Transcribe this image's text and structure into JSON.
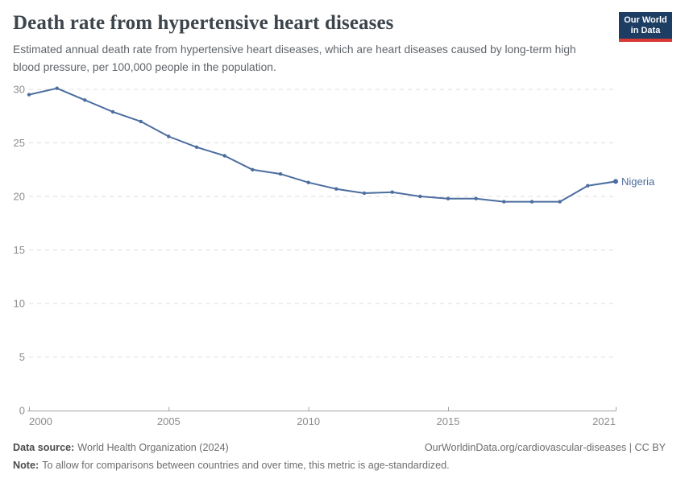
{
  "header": {
    "title": "Death rate from hypertensive heart diseases",
    "subtitle": "Estimated annual death rate from hypertensive heart diseases, which are heart diseases caused by long-term high blood pressure, per 100,000 people in the population.",
    "logo": {
      "line1": "Our World",
      "line2": "in Data"
    }
  },
  "chart_data": {
    "type": "line",
    "title": "Death rate from hypertensive heart diseases",
    "x": [
      2000,
      2001,
      2002,
      2003,
      2004,
      2005,
      2006,
      2007,
      2008,
      2009,
      2010,
      2011,
      2012,
      2013,
      2014,
      2015,
      2016,
      2017,
      2018,
      2019,
      2020,
      2021
    ],
    "series": [
      {
        "name": "Nigeria",
        "color": "#4c6da0",
        "values": [
          29.5,
          30.1,
          29.0,
          27.9,
          27.0,
          25.6,
          24.6,
          23.8,
          22.5,
          22.1,
          21.3,
          20.7,
          20.3,
          20.4,
          20.0,
          19.8,
          19.8,
          19.5,
          19.5,
          19.5,
          21.0,
          21.4
        ]
      }
    ],
    "xlabel": "",
    "ylabel": "",
    "xlim": [
      2000,
      2021
    ],
    "ylim": [
      0,
      30
    ],
    "xticks": [
      2000,
      2005,
      2010,
      2015,
      2021
    ],
    "yticks": [
      0,
      5,
      10,
      15,
      20,
      25,
      30
    ],
    "grid": "horizontal-dashed",
    "legend_position": "end-of-line-label"
  },
  "footer": {
    "datasource_label": "Data source:",
    "datasource_text": "World Health Organization (2024)",
    "link": "OurWorldinData.org/cardiovascular-diseases | CC BY",
    "note_label": "Note:",
    "note_text": "To allow for comparisons between countries and over time, this metric is age-standardized."
  },
  "colors": {
    "line": "#4c6da0",
    "logo_background": "#1d3d63",
    "logo_bar": "#d93a35",
    "grid": "#dedede",
    "axis": "#a3a3a3",
    "tick_text": "#8c8c8c",
    "title_text": "#3d454c"
  }
}
